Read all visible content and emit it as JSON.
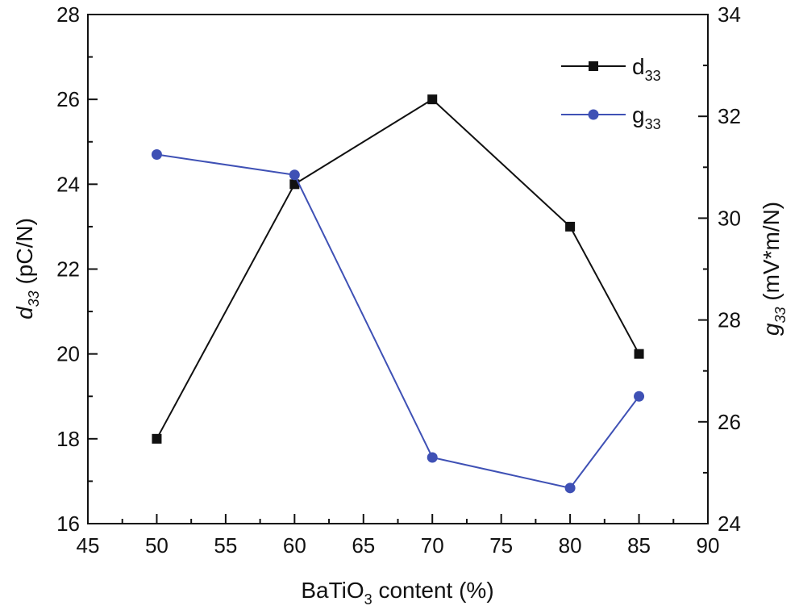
{
  "chart_data": {
    "type": "line",
    "title": "",
    "xlabel": {
      "main": "BaTiO",
      "sub": "3",
      "rest": " content (%)"
    },
    "ylabel_left": {
      "main": "d",
      "sub": "33",
      "rest": " (pC/N)"
    },
    "ylabel_right": {
      "main": "g",
      "sub": "33",
      "rest": " (mV*m/N)"
    },
    "x": [
      50,
      60,
      70,
      80,
      85
    ],
    "xlim": [
      45,
      90
    ],
    "xticks": [
      45,
      50,
      55,
      60,
      65,
      70,
      75,
      80,
      85,
      90
    ],
    "ylim_left": [
      16,
      28
    ],
    "yticks_left": [
      16,
      18,
      20,
      22,
      24,
      26,
      28
    ],
    "ylim_right": [
      24,
      34
    ],
    "yticks_right": [
      24,
      26,
      28,
      30,
      32,
      34
    ],
    "grid": false,
    "legend_position": "top-right",
    "series": [
      {
        "name": "d",
        "name_sub": "33",
        "axis": "left",
        "marker": "square",
        "color": "#111111",
        "values": [
          18,
          24,
          26,
          23,
          20
        ]
      },
      {
        "name": "g",
        "name_sub": "33",
        "axis": "right",
        "marker": "circle",
        "color": "#3f51b5",
        "values": [
          31.25,
          30.85,
          25.3,
          24.7,
          26.5
        ]
      }
    ]
  }
}
